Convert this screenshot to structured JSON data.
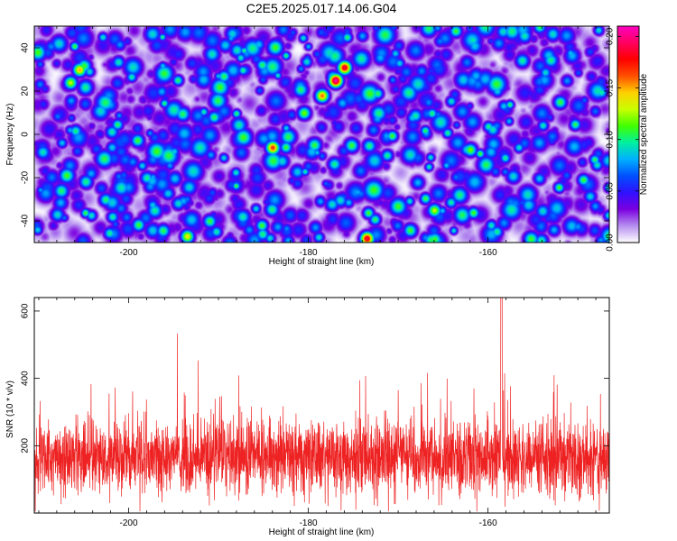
{
  "title": "C2E5.2025.017.14.06.G04",
  "chart_data": [
    {
      "type": "heatmap",
      "xlabel": "Height of straight line (km)",
      "ylabel": "Frequency (Hz)",
      "xlim": [
        -210.5,
        -146.5
      ],
      "ylim": [
        -50,
        50
      ],
      "xticks": [
        -200,
        -180,
        -160
      ],
      "yticks": [
        -40,
        -20,
        0,
        20,
        40
      ],
      "colorbar": {
        "label": "Normalized spectral amplitude",
        "range": [
          0,
          0.21
        ],
        "ticks": [
          0.0,
          0.05,
          0.1,
          0.15,
          0.2
        ],
        "tick_labels": [
          "0.00",
          "0.05",
          "0.10",
          "0.15",
          "0.20"
        ],
        "colors": [
          "#ffffff",
          "#b68ff0",
          "#7a00e0",
          "#3010ff",
          "#0050ff",
          "#00b0ff",
          "#00f0a0",
          "#40ff00",
          "#c8ff00",
          "#ffd000",
          "#ff5000",
          "#ff0000",
          "#ff0060",
          "#ff00c0"
        ]
      },
      "hot_spots": [
        {
          "x": -177.0,
          "y": 25,
          "v": 0.21
        },
        {
          "x": -176.0,
          "y": 31,
          "v": 0.19
        },
        {
          "x": -178.5,
          "y": 18,
          "v": 0.16
        },
        {
          "x": -173.5,
          "y": -48,
          "v": 0.19
        },
        {
          "x": -184.0,
          "y": -6,
          "v": 0.17
        },
        {
          "x": -205.5,
          "y": 30,
          "v": 0.15
        },
        {
          "x": -193.5,
          "y": -47,
          "v": 0.14
        },
        {
          "x": -206.5,
          "y": 24,
          "v": 0.13
        },
        {
          "x": -166.0,
          "y": -35,
          "v": 0.13
        },
        {
          "x": -162.0,
          "y": -7,
          "v": 0.12
        },
        {
          "x": -180.5,
          "y": 10,
          "v": 0.12
        },
        {
          "x": -191.0,
          "y": -40,
          "v": 0.11
        },
        {
          "x": -152.0,
          "y": 15,
          "v": 0.11
        },
        {
          "x": -198.0,
          "y": -20,
          "v": 0.1
        }
      ]
    },
    {
      "type": "line",
      "xlabel": "Height of straight line (km)",
      "ylabel": "SNR (10 * v/v)",
      "xlim": [
        -210.5,
        -146.5
      ],
      "ylim": [
        0,
        640
      ],
      "xticks": [
        -200,
        -180,
        -160
      ],
      "yticks": [
        200,
        400,
        600
      ],
      "series": [
        {
          "color": "#ee2222",
          "baseline": 165,
          "spread": 75,
          "peak": 640,
          "peak_x": -158.5
        }
      ]
    }
  ]
}
